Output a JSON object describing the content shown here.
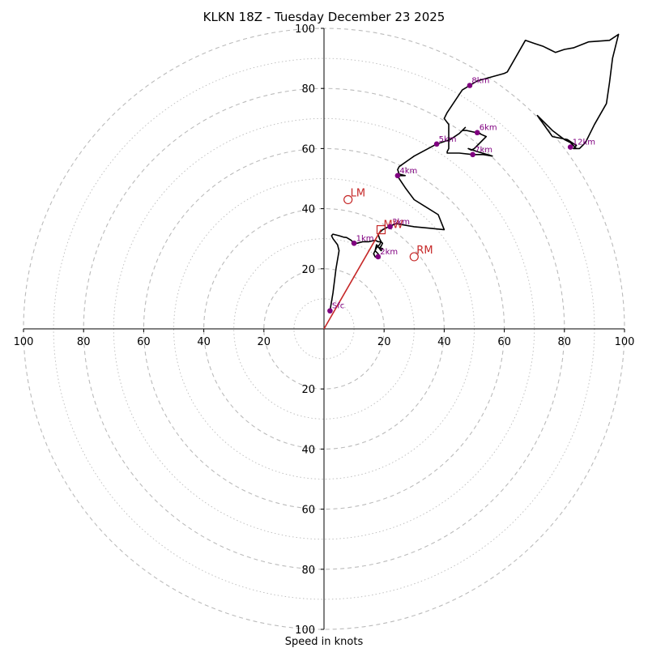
{
  "chart_data": {
    "type": "hodograph",
    "title": "KLKN 18Z - Tuesday December 23 2025",
    "xlabel": "Speed in knots",
    "range": [
      -100,
      100
    ],
    "ring_ticks": [
      20,
      40,
      60,
      80,
      100
    ],
    "ring_tick_labels": [
      "20",
      "40",
      "60",
      "80",
      "100"
    ],
    "x_tick_labels": [
      "100",
      "80",
      "60",
      "40",
      "20",
      "",
      "20",
      "40",
      "60",
      "80",
      "100"
    ],
    "y_tick_labels_up": [
      "20",
      "40",
      "60",
      "80",
      "100"
    ],
    "y_tick_labels_down": [
      "20",
      "40",
      "60",
      "80",
      "100"
    ],
    "colors": {
      "trace": "#000000",
      "markers": "#800080",
      "storm": "#c62828",
      "grid": "#bbbbbb",
      "axis": "#000000"
    },
    "trace_uv": [
      [
        2,
        6
      ],
      [
        3,
        12
      ],
      [
        4,
        20
      ],
      [
        5,
        26
      ],
      [
        4.5,
        28
      ],
      [
        3,
        30
      ],
      [
        2.5,
        31
      ],
      [
        3,
        31.5
      ],
      [
        5,
        31
      ],
      [
        6.5,
        30.5
      ],
      [
        7.5,
        30.4
      ],
      [
        9,
        29.5
      ],
      [
        10,
        28.5
      ],
      [
        11,
        28.5
      ],
      [
        13,
        29
      ],
      [
        15,
        29
      ],
      [
        17,
        29.5
      ],
      [
        18,
        29
      ],
      [
        19,
        29
      ],
      [
        19.5,
        28.5
      ],
      [
        19,
        27.5
      ],
      [
        18.5,
        27
      ],
      [
        19.5,
        26.7
      ],
      [
        19,
        26
      ],
      [
        17.5,
        28
      ],
      [
        17,
        26
      ],
      [
        18,
        25
      ],
      [
        18.5,
        24
      ],
      [
        18,
        23.5
      ],
      [
        17,
        24
      ],
      [
        16.5,
        25
      ],
      [
        17.5,
        27
      ],
      [
        18.5,
        28
      ],
      [
        19,
        29
      ],
      [
        18.5,
        30
      ],
      [
        18,
        31.5
      ],
      [
        18.5,
        32
      ],
      [
        19.5,
        33
      ],
      [
        21.5,
        34
      ],
      [
        24,
        35
      ],
      [
        30,
        34
      ],
      [
        35,
        33.5
      ],
      [
        40,
        33
      ],
      [
        38,
        38
      ],
      [
        30,
        43
      ],
      [
        27,
        47
      ],
      [
        25,
        50
      ],
      [
        24.5,
        51
      ],
      [
        26,
        51
      ],
      [
        27,
        51
      ],
      [
        25,
        51.5
      ],
      [
        24.5,
        53
      ],
      [
        25,
        54
      ],
      [
        30,
        57.5
      ],
      [
        37.5,
        61.5
      ],
      [
        39,
        62
      ],
      [
        42,
        63
      ],
      [
        45,
        65
      ],
      [
        47,
        67
      ],
      [
        46,
        66
      ],
      [
        47.5,
        66
      ],
      [
        52,
        65
      ],
      [
        51,
        65.3
      ],
      [
        54,
        64
      ],
      [
        52,
        62
      ],
      [
        50,
        60
      ],
      [
        49,
        59.5
      ],
      [
        48,
        60
      ],
      [
        51,
        59
      ],
      [
        56,
        57.5
      ],
      [
        53,
        58
      ],
      [
        49.5,
        58
      ],
      [
        45,
        58.5
      ],
      [
        41,
        58.5
      ],
      [
        41,
        59
      ],
      [
        41.5,
        60
      ],
      [
        41.5,
        61
      ],
      [
        41.5,
        62
      ],
      [
        41.5,
        63.5
      ],
      [
        41.5,
        65
      ],
      [
        41.5,
        66
      ],
      [
        41.5,
        68
      ],
      [
        40,
        70
      ],
      [
        41,
        72
      ],
      [
        43,
        75
      ],
      [
        45,
        78
      ],
      [
        46,
        79.5
      ],
      [
        48.5,
        81
      ],
      [
        51,
        82.5
      ],
      [
        60,
        85
      ],
      [
        61,
        85.5
      ],
      [
        67,
        96
      ],
      [
        70,
        95
      ],
      [
        73,
        94
      ],
      [
        75,
        93
      ],
      [
        77,
        92
      ],
      [
        80,
        93
      ],
      [
        83,
        93.5
      ],
      [
        88,
        95.5
      ],
      [
        95,
        96
      ],
      [
        98,
        98
      ],
      [
        96,
        90
      ],
      [
        95,
        82
      ],
      [
        94,
        75
      ],
      [
        90,
        68
      ],
      [
        87,
        62
      ],
      [
        85,
        60
      ],
      [
        83,
        60
      ],
      [
        84,
        61
      ],
      [
        81,
        63
      ],
      [
        76,
        64
      ],
      [
        71,
        71
      ],
      [
        76,
        66
      ],
      [
        80,
        63
      ],
      [
        82,
        62
      ],
      [
        84,
        60
      ]
    ],
    "height_markers": [
      {
        "label": "Sfc",
        "u": 2,
        "v": 6
      },
      {
        "label": "1km",
        "u": 10,
        "v": 28.5
      },
      {
        "label": "2km",
        "u": 18,
        "v": 24
      },
      {
        "label": "3km",
        "u": 22,
        "v": 34
      },
      {
        "label": "4km",
        "u": 24.5,
        "v": 51
      },
      {
        "label": "5km",
        "u": 37.5,
        "v": 61.5
      },
      {
        "label": "6km",
        "u": 51,
        "v": 65.3
      },
      {
        "label": "7km",
        "u": 49.5,
        "v": 58
      },
      {
        "label": "8km",
        "u": 48.5,
        "v": 81
      },
      {
        "label": "12km",
        "u": 82,
        "v": 60.5
      }
    ],
    "storm_motion": {
      "mw": {
        "label": "MW",
        "u": 19,
        "v": 33
      },
      "lm": {
        "label": "LM",
        "u": 8,
        "v": 43
      },
      "rm": {
        "label": "RM",
        "u": 30,
        "v": 24
      }
    }
  }
}
